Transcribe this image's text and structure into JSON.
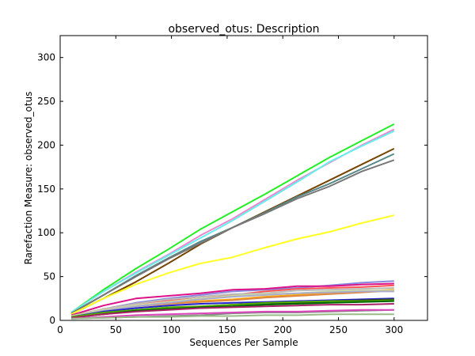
{
  "chart_data": {
    "type": "line",
    "title": "observed_otus: Description",
    "xlabel": "Sequences Per Sample",
    "ylabel": "Rarefaction Measure: observed_otus",
    "xlim": [
      0,
      330
    ],
    "ylim": [
      0,
      325
    ],
    "xticks": [
      0,
      50,
      100,
      150,
      200,
      250,
      300
    ],
    "yticks": [
      0,
      50,
      100,
      150,
      200,
      250,
      300
    ],
    "grid": false,
    "legend": "none",
    "x": [
      10,
      39,
      68,
      97,
      126,
      155,
      184,
      213,
      242,
      271,
      300
    ],
    "series": [
      {
        "color": "#22ee22",
        "values": [
          9,
          35,
          59,
          81,
          104,
          124,
          144,
          165,
          186,
          205,
          224
        ]
      },
      {
        "color": "#ee88cc",
        "values": [
          9,
          33,
          55,
          75,
          97,
          116,
          138,
          160,
          180,
          200,
          218
        ]
      },
      {
        "color": "#66eeee",
        "values": [
          9,
          33,
          54,
          74,
          94,
          114,
          136,
          158,
          181,
          199,
          216
        ]
      },
      {
        "color": "#774400",
        "values": [
          7,
          25,
          44,
          65,
          87,
          106,
          124,
          142,
          160,
          178,
          196
        ]
      },
      {
        "color": "#558888",
        "values": [
          8,
          29,
          51,
          71,
          90,
          106,
          123,
          141,
          156,
          173,
          190
        ]
      },
      {
        "color": "#777777",
        "values": [
          8,
          29,
          50,
          70,
          88,
          106,
          122,
          139,
          153,
          170,
          183
        ]
      },
      {
        "color": "#ffff22",
        "values": [
          7,
          25,
          41,
          54,
          65,
          72,
          83,
          93,
          101,
          111,
          120
        ]
      },
      {
        "color": "#8888dd",
        "values": [
          5,
          13,
          20,
          25,
          29,
          33,
          35,
          37,
          40,
          43,
          45
        ]
      },
      {
        "color": "#dd1188",
        "values": [
          6,
          17,
          25,
          28,
          31,
          35,
          36,
          39,
          39,
          41,
          42
        ]
      },
      {
        "color": "#ff5555",
        "values": [
          5,
          13,
          19,
          23,
          27,
          29,
          33,
          36,
          37,
          38,
          40
        ]
      },
      {
        "color": "#ffaa00",
        "values": [
          4,
          11,
          17,
          20,
          22,
          24,
          27,
          29,
          31,
          33,
          35
        ]
      },
      {
        "color": "#dd8844",
        "values": [
          4,
          11,
          16,
          19,
          21,
          23,
          26,
          28,
          30,
          32,
          34
        ]
      },
      {
        "color": "#bbbbbb",
        "values": [
          5,
          13,
          19,
          24,
          27,
          30,
          31,
          34,
          35,
          36,
          37
        ]
      },
      {
        "color": "#ccdd99",
        "values": [
          5,
          12,
          17,
          21,
          25,
          28,
          30,
          31,
          33,
          34,
          34
        ]
      },
      {
        "color": "#aaaacc",
        "values": [
          4,
          11,
          16,
          20,
          24,
          27,
          29,
          31,
          32,
          33,
          33
        ]
      },
      {
        "color": "#2222cc",
        "values": [
          4,
          10,
          14,
          17,
          19,
          20,
          21,
          22,
          23,
          24,
          25
        ]
      },
      {
        "color": "#22aa55",
        "values": [
          3,
          8,
          12,
          14,
          16,
          18,
          19,
          20,
          21,
          23,
          24
        ]
      },
      {
        "color": "#333333",
        "values": [
          3,
          8,
          11,
          13,
          15,
          16,
          18,
          20,
          22,
          23,
          24
        ]
      },
      {
        "color": "#55aa00",
        "values": [
          4,
          9,
          12,
          15,
          16,
          18,
          20,
          21,
          22,
          22,
          23
        ]
      },
      {
        "color": "#006600",
        "values": [
          3,
          7,
          11,
          13,
          15,
          16,
          18,
          19,
          20,
          21,
          22
        ]
      },
      {
        "color": "#aa2266",
        "values": [
          3,
          7,
          10,
          12,
          14,
          15,
          16,
          17,
          18,
          18,
          19
        ]
      },
      {
        "color": "#888888",
        "values": [
          2,
          3,
          4,
          5,
          6,
          8,
          9,
          9,
          10,
          11,
          12
        ]
      },
      {
        "color": "#dd44bb",
        "values": [
          2,
          4,
          6,
          7,
          8,
          9,
          10,
          10,
          11,
          12,
          12
        ]
      },
      {
        "color": "#99bb88",
        "values": [
          2,
          3,
          4,
          4,
          5,
          5,
          6,
          6,
          7,
          7,
          7
        ]
      }
    ]
  }
}
